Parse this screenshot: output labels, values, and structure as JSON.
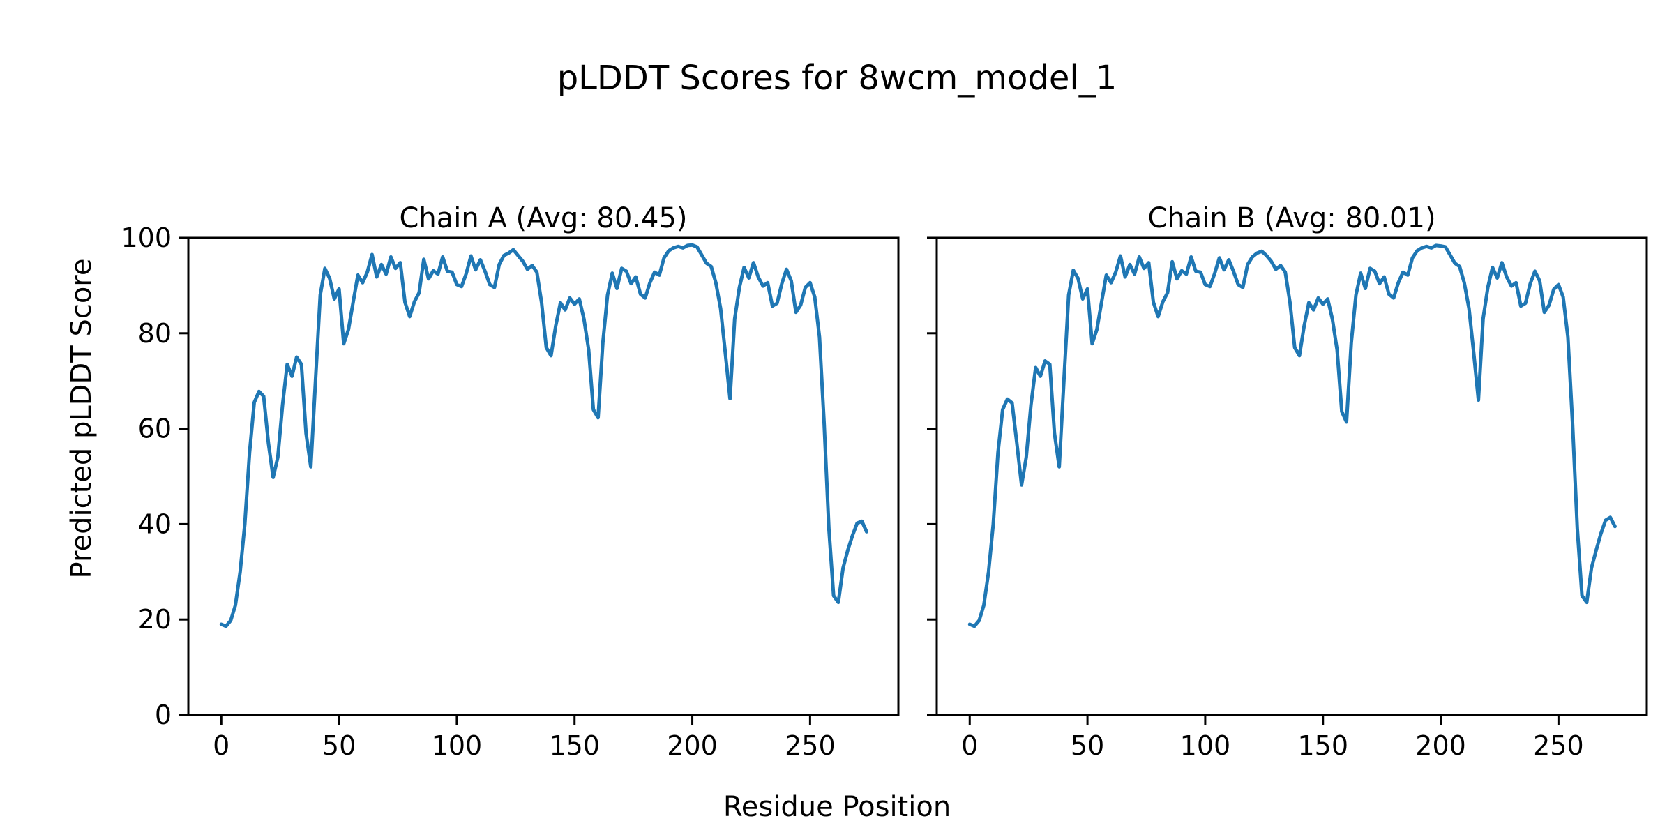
{
  "figure": {
    "title": "pLDDT Scores for 8wcm_model_1",
    "xlabel": "Residue Position",
    "ylabel": "Predicted pLDDT Score",
    "background_color": "#ffffff",
    "text_color": "#000000",
    "line_color": "#1f77b4",
    "axis_color": "#000000"
  },
  "chart_data": [
    {
      "type": "line",
      "title": "Chain A (Avg: 80.45)",
      "chain": "A",
      "avg_plddt": 80.45,
      "xlabel": "Residue Position",
      "ylabel": "Predicted pLDDT Score",
      "x_start": 0,
      "x_step": 2,
      "xlim": [
        -14,
        287.5
      ],
      "ylim": [
        0,
        100
      ],
      "xticks": [
        0,
        50,
        100,
        150,
        200,
        250
      ],
      "yticks": [
        0,
        20,
        40,
        60,
        80,
        100
      ],
      "yticklabels_visible": true,
      "grid": false,
      "legend_position": "none",
      "values": [
        19.0,
        18.6,
        19.8,
        23.0,
        30.0,
        40.0,
        55.0,
        65.5,
        67.8,
        66.8,
        57.0,
        49.8,
        54.0,
        65.0,
        73.5,
        71.0,
        75.0,
        73.5,
        59.0,
        52.0,
        70.0,
        88.0,
        93.6,
        91.5,
        87.2,
        89.3,
        77.8,
        80.8,
        86.6,
        92.2,
        90.6,
        92.8,
        96.5,
        91.8,
        94.4,
        92.4,
        96.0,
        93.6,
        94.8,
        86.5,
        83.5,
        86.6,
        88.5,
        95.5,
        91.4,
        93.1,
        92.4,
        96.0,
        93.0,
        92.8,
        90.2,
        89.8,
        92.5,
        96.2,
        93.3,
        95.4,
        93.0,
        90.2,
        89.6,
        94.4,
        96.3,
        96.8,
        97.5,
        96.3,
        95.1,
        93.4,
        94.2,
        92.8,
        86.4,
        77.0,
        75.3,
        81.5,
        86.4,
        84.9,
        87.4,
        86.1,
        87.2,
        83.0,
        76.5,
        64.0,
        62.3,
        78.0,
        88.0,
        92.6,
        89.4,
        93.6,
        93.0,
        90.4,
        91.8,
        88.2,
        87.4,
        90.6,
        92.8,
        92.2,
        95.8,
        97.3,
        97.9,
        98.2,
        97.9,
        98.4,
        98.5,
        98.1,
        96.4,
        94.7,
        94.0,
        90.6,
        85.2,
        76.0,
        66.3,
        83.0,
        89.6,
        93.8,
        91.6,
        94.8,
        91.8,
        89.9,
        90.6,
        85.7,
        86.3,
        90.4,
        93.4,
        91.0,
        84.4,
        85.9,
        89.6,
        90.6,
        87.6,
        79.2,
        61.0,
        39.0,
        25.0,
        23.6,
        30.8,
        34.5,
        37.6,
        40.2,
        40.6,
        38.4
      ]
    },
    {
      "type": "line",
      "title": "Chain B (Avg: 80.01)",
      "chain": "B",
      "avg_plddt": 80.01,
      "xlabel": "Residue Position",
      "ylabel": "Predicted pLDDT Score",
      "x_start": 0,
      "x_step": 2,
      "xlim": [
        -14,
        287.5
      ],
      "ylim": [
        0,
        100
      ],
      "xticks": [
        0,
        50,
        100,
        150,
        200,
        250
      ],
      "yticks": [
        0,
        20,
        40,
        60,
        80,
        100
      ],
      "yticklabels_visible": false,
      "grid": false,
      "legend_position": "none",
      "values": [
        19.0,
        18.6,
        19.8,
        23.0,
        30.0,
        40.0,
        55.0,
        64.0,
        66.2,
        65.4,
        57.0,
        48.2,
        54.0,
        65.0,
        72.8,
        71.0,
        74.2,
        73.5,
        59.0,
        52.0,
        70.0,
        88.0,
        93.2,
        91.5,
        87.2,
        89.3,
        77.8,
        80.8,
        86.6,
        92.2,
        90.6,
        92.8,
        96.2,
        91.8,
        94.4,
        92.4,
        96.0,
        93.6,
        94.8,
        86.5,
        83.5,
        86.6,
        88.5,
        95.0,
        91.4,
        93.1,
        92.4,
        96.0,
        93.0,
        92.8,
        90.2,
        89.8,
        92.5,
        95.8,
        93.3,
        95.4,
        93.0,
        90.2,
        89.6,
        94.4,
        96.0,
        96.8,
        97.2,
        96.3,
        95.1,
        93.4,
        94.2,
        92.8,
        86.4,
        77.0,
        75.3,
        81.5,
        86.4,
        84.9,
        87.4,
        86.1,
        87.2,
        83.0,
        76.5,
        63.6,
        61.4,
        78.0,
        88.0,
        92.6,
        89.4,
        93.6,
        93.0,
        90.4,
        91.8,
        88.2,
        87.4,
        90.6,
        92.8,
        92.2,
        95.8,
        97.3,
        97.9,
        98.2,
        97.9,
        98.4,
        98.3,
        98.1,
        96.4,
        94.7,
        94.0,
        90.6,
        85.2,
        76.0,
        66.0,
        83.0,
        89.6,
        93.8,
        91.6,
        94.8,
        91.8,
        89.9,
        90.6,
        85.7,
        86.3,
        90.4,
        93.0,
        91.0,
        84.4,
        85.9,
        89.2,
        90.2,
        87.6,
        79.2,
        61.0,
        39.0,
        25.0,
        23.6,
        30.8,
        34.5,
        38.0,
        40.8,
        41.4,
        39.5
      ]
    }
  ]
}
